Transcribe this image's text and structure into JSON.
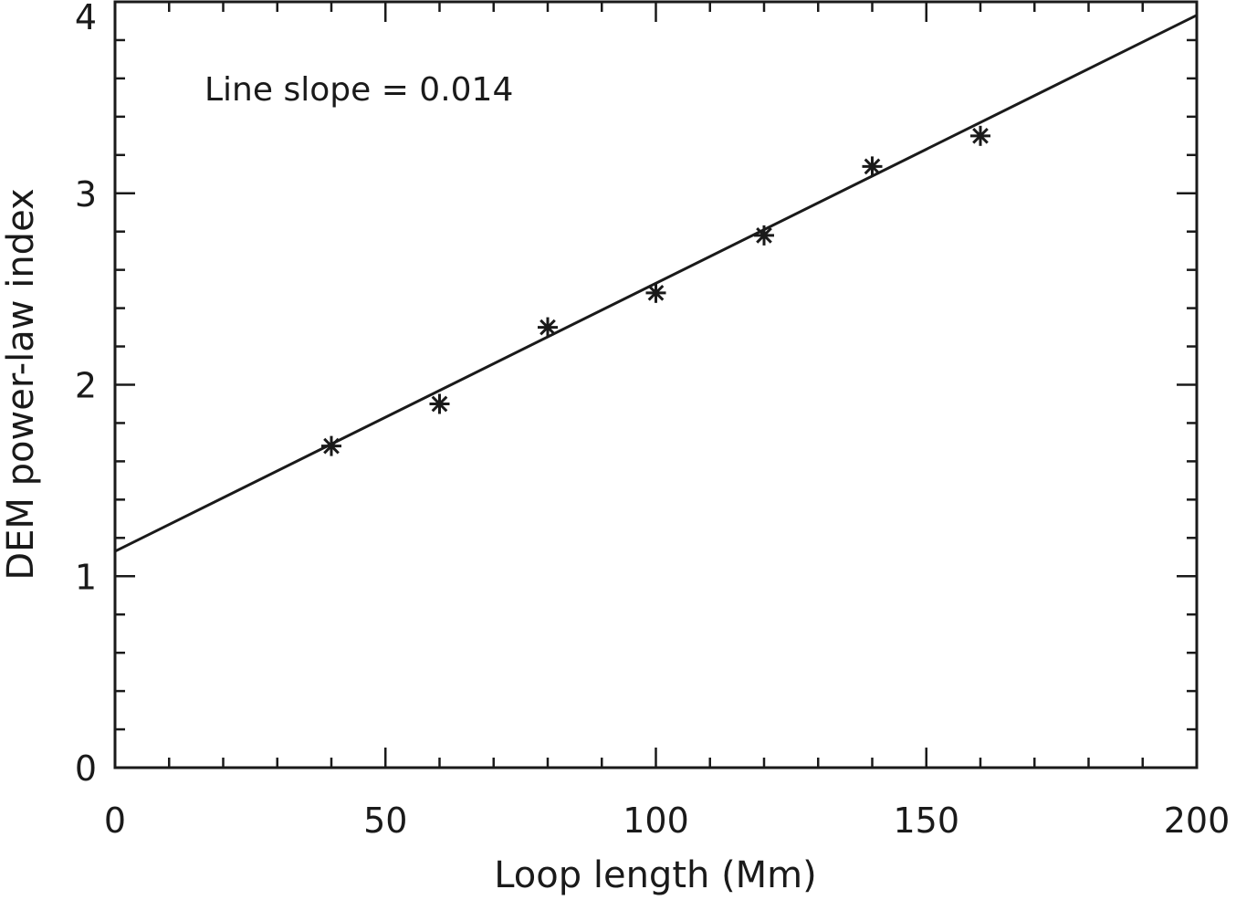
{
  "chart_data": {
    "type": "scatter",
    "title": "",
    "xlabel": "Loop length (Mm)",
    "ylabel": "DEM power-law index",
    "xlim": [
      0,
      200
    ],
    "ylim": [
      0,
      4
    ],
    "xticks": [
      0,
      50,
      100,
      150,
      200
    ],
    "yticks": [
      0,
      1,
      2,
      3,
      4
    ],
    "x_minor_step": 10,
    "y_minor_step": 0.2,
    "grid": false,
    "annotation": "Line slope = 0.014",
    "series": [
      {
        "marker": "asterisk",
        "x": [
          40,
          60,
          80,
          100,
          120,
          140,
          160
        ],
        "y": [
          1.68,
          1.9,
          2.3,
          2.48,
          2.78,
          3.14,
          3.3
        ]
      }
    ],
    "fit_line": {
      "x": [
        0,
        200
      ],
      "y": [
        1.13,
        3.93
      ]
    },
    "color": "#1a1a1a"
  }
}
